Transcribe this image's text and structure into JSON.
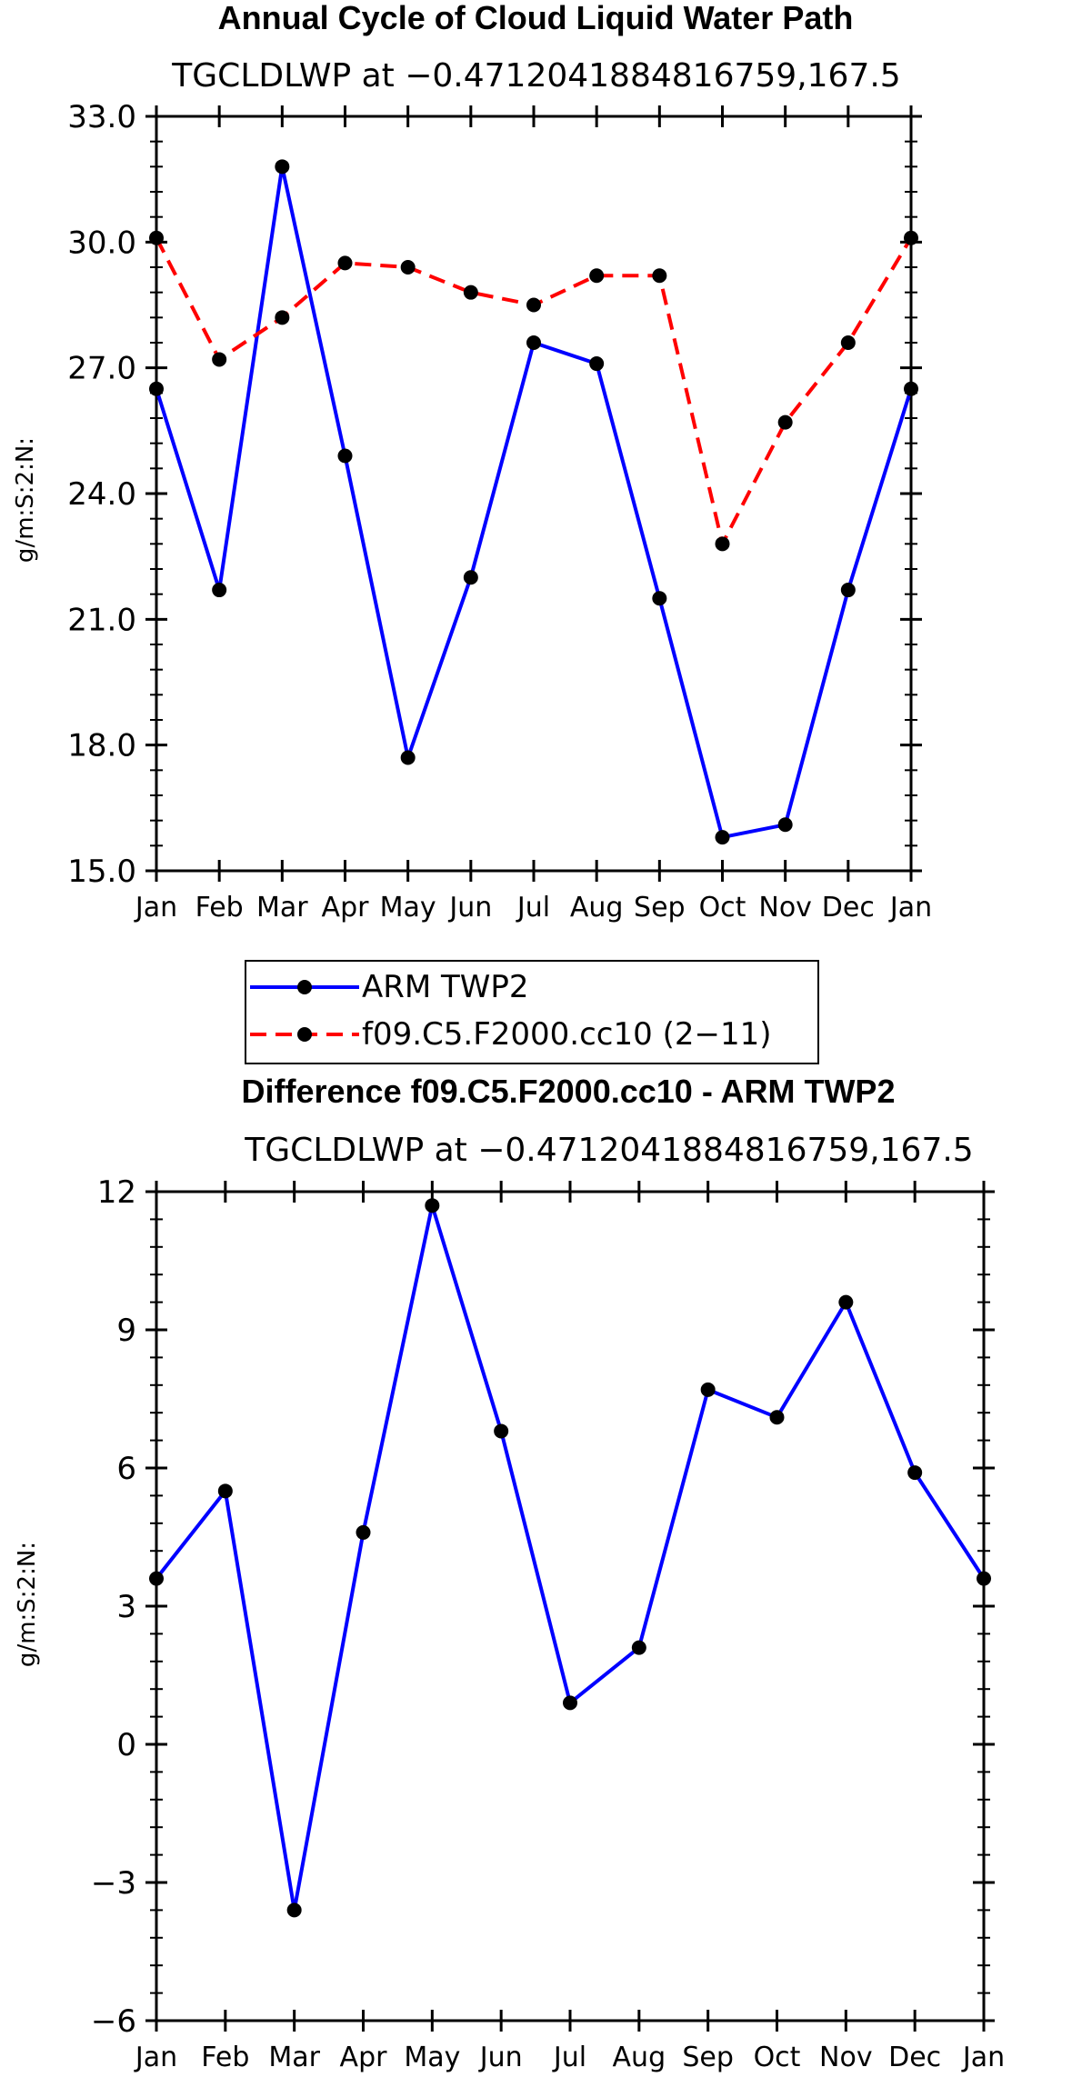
{
  "chart_data": [
    {
      "type": "line",
      "title": "Annual Cycle of Cloud Liquid Water Path",
      "subtitle": "TGCLDLWP at −0.4712041884816759,167.5",
      "xlabel": "",
      "ylabel": "g/m:S:2:N:",
      "categories": [
        "Jan",
        "Feb",
        "Mar",
        "Apr",
        "May",
        "Jun",
        "Jul",
        "Aug",
        "Sep",
        "Oct",
        "Nov",
        "Dec",
        "Jan"
      ],
      "ylim": [
        15.0,
        33.0
      ],
      "yticks": [
        "15.0",
        "18.0",
        "21.0",
        "24.0",
        "27.0",
        "30.0",
        "33.0"
      ],
      "ytick_values": [
        15,
        18,
        21,
        24,
        27,
        30,
        33
      ],
      "series": [
        {
          "name": "ARM TWP2",
          "color": "#0000ff",
          "dash": "solid",
          "values": [
            26.5,
            21.7,
            31.8,
            24.9,
            17.7,
            22.0,
            27.6,
            27.1,
            21.5,
            15.8,
            16.1,
            21.7,
            26.5
          ]
        },
        {
          "name": "f09.C5.F2000.cc10 (2−11)",
          "color": "#ff0000",
          "dash": "dashed",
          "values": [
            30.1,
            27.2,
            28.2,
            29.5,
            29.4,
            28.8,
            28.5,
            29.2,
            29.2,
            22.8,
            25.7,
            27.6,
            30.1
          ]
        }
      ],
      "legend": "below"
    },
    {
      "type": "line",
      "title": "Difference f09.C5.F2000.cc10 - ARM TWP2",
      "subtitle": "TGCLDLWP at −0.4712041884816759,167.5",
      "xlabel": "",
      "ylabel": "g/m:S:2:N:",
      "categories": [
        "Jan",
        "Feb",
        "Mar",
        "Apr",
        "May",
        "Jun",
        "Jul",
        "Aug",
        "Sep",
        "Oct",
        "Nov",
        "Dec",
        "Jan"
      ],
      "ylim": [
        -6,
        12
      ],
      "yticks": [
        "−6",
        "−3",
        "0",
        "3",
        "6",
        "9",
        "12"
      ],
      "ytick_values": [
        -6,
        -3,
        0,
        3,
        6,
        9,
        12
      ],
      "series": [
        {
          "name": "Difference",
          "color": "#0000ff",
          "dash": "solid",
          "values": [
            3.6,
            5.5,
            -3.6,
            4.6,
            11.7,
            6.8,
            0.9,
            2.1,
            7.7,
            7.1,
            9.6,
            5.9,
            3.6
          ]
        }
      ],
      "legend": "none"
    }
  ]
}
